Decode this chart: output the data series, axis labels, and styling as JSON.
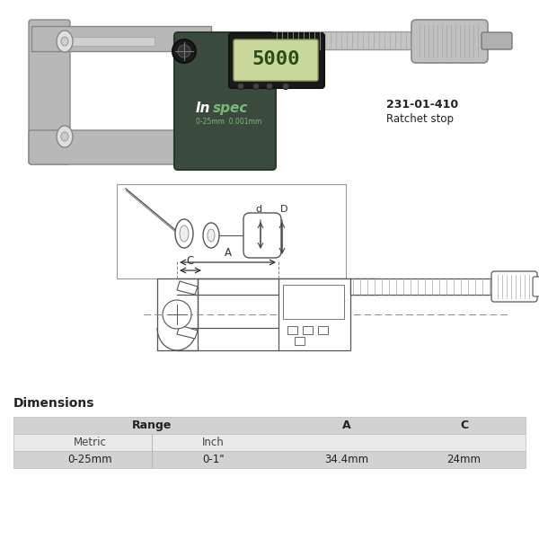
{
  "bg_color": "#ffffff",
  "item_number": "231-01-410",
  "ratchet_text": "Ratchet stop",
  "inspec_brand": "Inspec",
  "inspec_sub": "0-25mm  0.001mm",
  "display_value": "5000",
  "dimensions_title": "Dimensions",
  "table_headers_range": "Range",
  "table_header_metric": "Metric",
  "table_header_inch": "Inch",
  "table_header_A": "A",
  "table_header_C": "C",
  "table_row_metric": "0-25mm",
  "table_row_inch": "0-1\"",
  "table_row_A": "34.4mm",
  "table_row_C": "24mm",
  "dim_label_d": "d",
  "dim_label_D": "D",
  "dim_label_A": "A",
  "dim_label_C": "C",
  "frame_color": "#b8b8b8",
  "silver": "#c5c5c5",
  "dark_body": "#3a4a3c",
  "lcd_color": "#c8d89a",
  "knurl_color": "#d0d0d0"
}
